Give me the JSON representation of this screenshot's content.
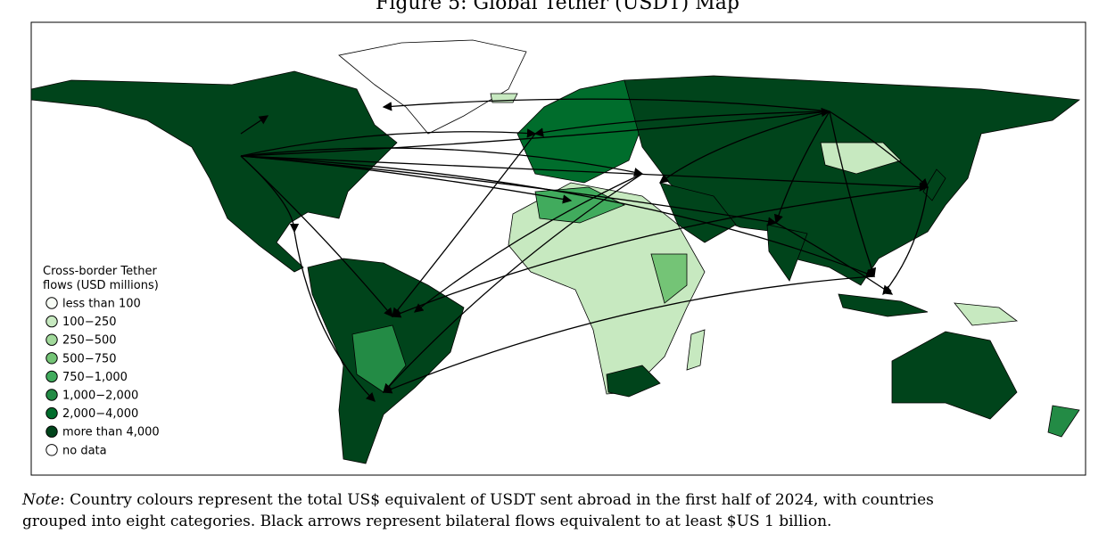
{
  "title": "Figure 5: Global Tether (USDT) Map",
  "legend": {
    "title": [
      "Cross-border Tether",
      "flows (USD millions)"
    ],
    "items": [
      {
        "label": "less than 100",
        "color": "#f7fcf5"
      },
      {
        "label": "100−250",
        "color": "#c7e9c0"
      },
      {
        "label": "250−500",
        "color": "#a1d99b"
      },
      {
        "label": "500−750",
        "color": "#74c476"
      },
      {
        "label": "750−1,000",
        "color": "#41ab5d"
      },
      {
        "label": "1,000−2,000",
        "color": "#238b45"
      },
      {
        "label": "2,000−4,000",
        "color": "#006d2c"
      },
      {
        "label": "more than 4,000",
        "color": "#00441b"
      },
      {
        "label": "no data",
        "color": "#ffffff"
      }
    ]
  },
  "note": {
    "lead": "Note",
    "lines": [
      ": Country colours represent the total US$ equivalent of USDT sent abroad in the first half of 2024, with countries",
      "grouped into eight categories. Black arrows represent bilateral flows equivalent to at least $US 1 billion."
    ]
  }
}
